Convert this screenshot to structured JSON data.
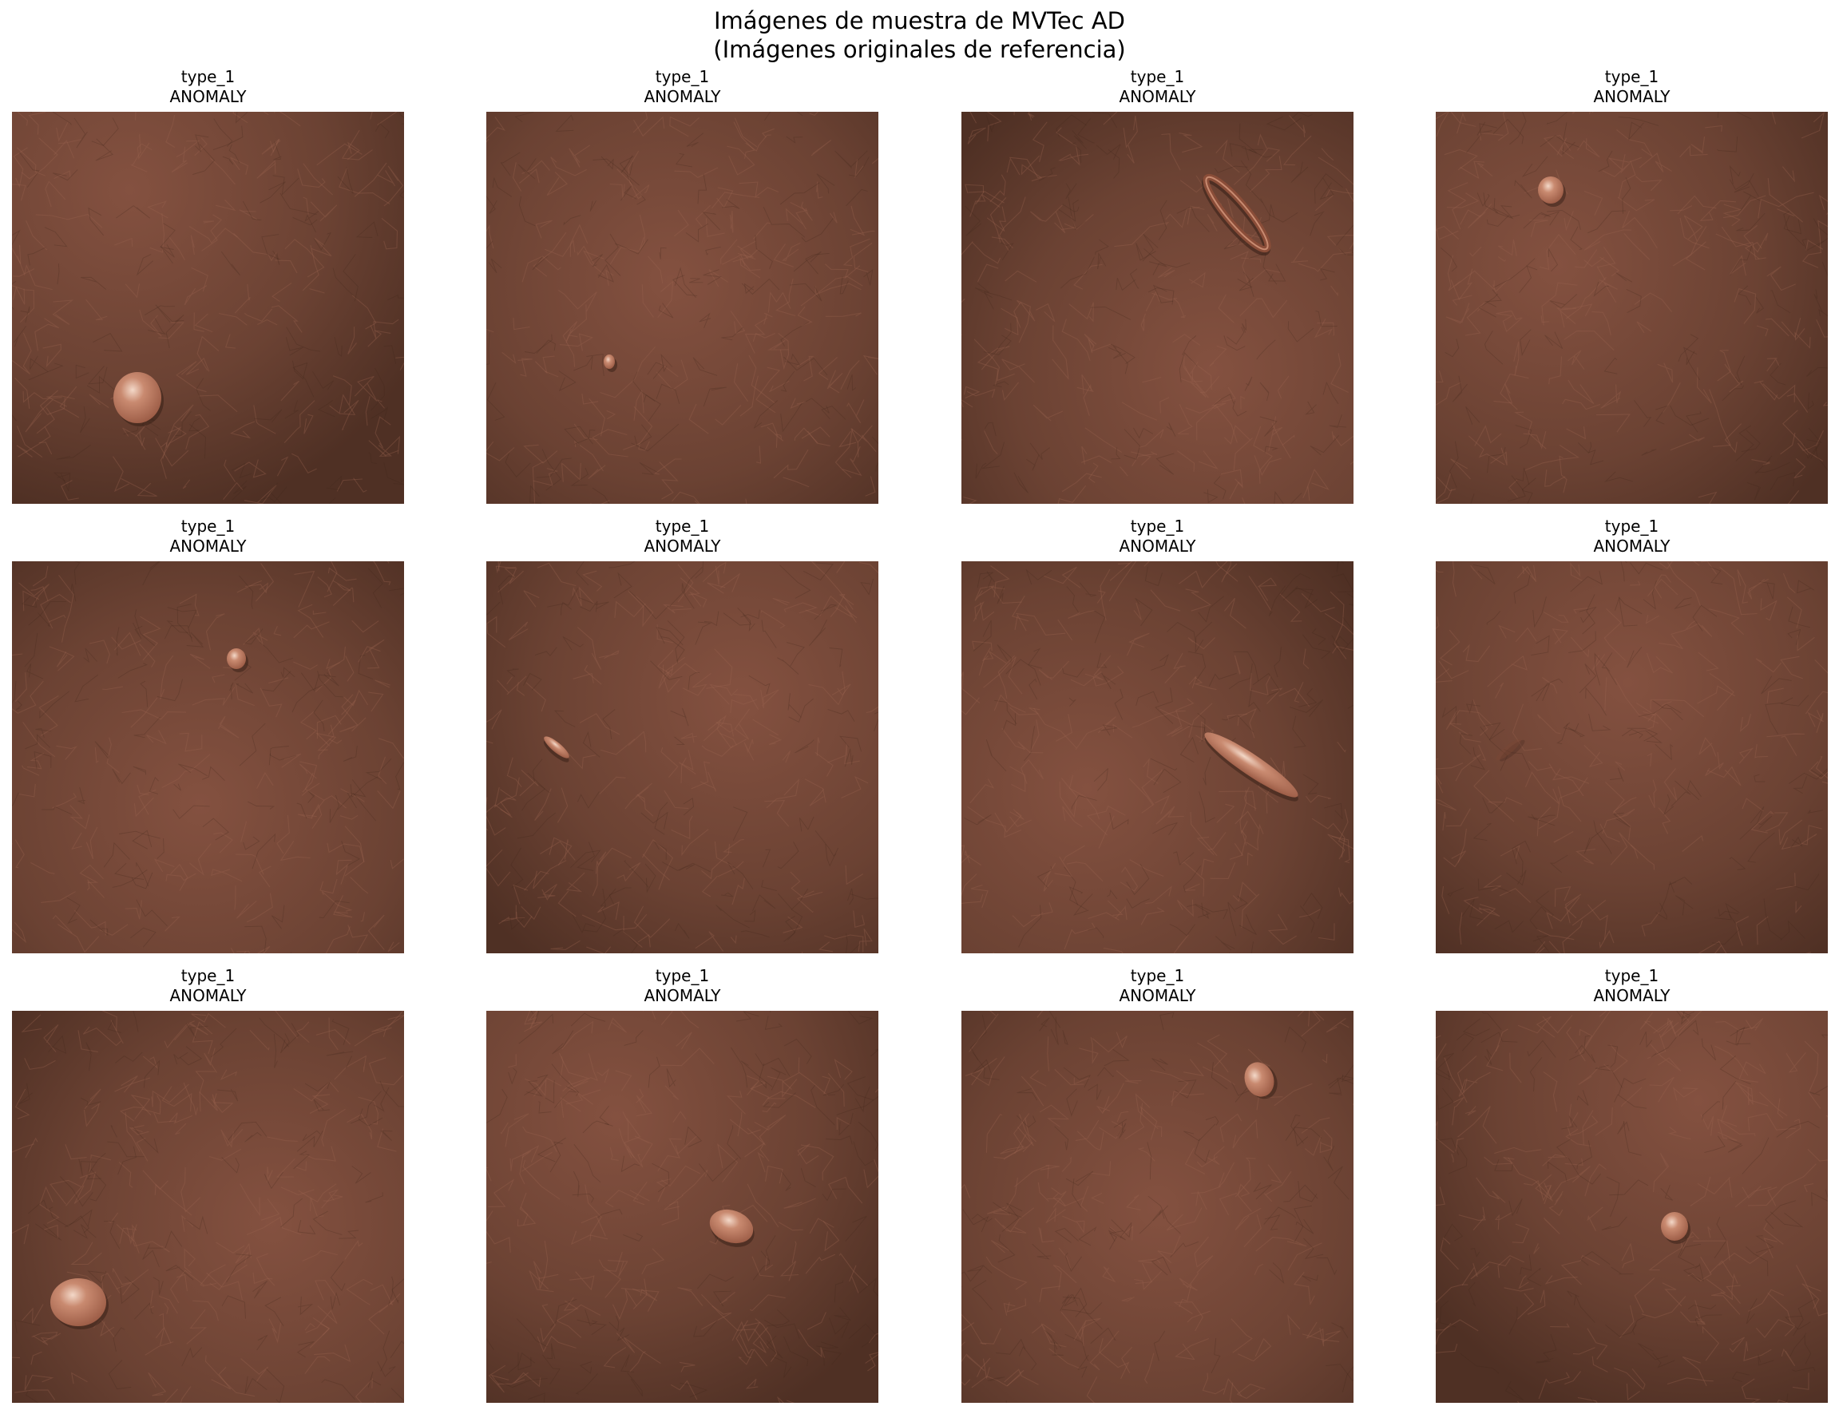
{
  "figure": {
    "title_line1": "Imágenes de muestra de MVTec AD",
    "title_line2": "(Imágenes originales de referencia)"
  },
  "colors": {
    "leather_base": "#6b4233",
    "leather_light": "#845140",
    "leather_dark": "#4f3024",
    "defect": "#9a5a44",
    "highlight": "#f3d8c8"
  },
  "panels": [
    {
      "type": "type_1",
      "status": "ANOMALY",
      "defect": "large round drop, lower left"
    },
    {
      "type": "type_1",
      "status": "ANOMALY",
      "defect": "tiny spot, left center"
    },
    {
      "type": "type_1",
      "status": "ANOMALY",
      "defect": "elongated loop, upper right"
    },
    {
      "type": "type_1",
      "status": "ANOMALY",
      "defect": "small round drop, upper left"
    },
    {
      "type": "type_1",
      "status": "ANOMALY",
      "defect": "small dot, upper center"
    },
    {
      "type": "type_1",
      "status": "ANOMALY",
      "defect": "small streak, left"
    },
    {
      "type": "type_1",
      "status": "ANOMALY",
      "defect": "long diagonal streak, center right"
    },
    {
      "type": "type_1",
      "status": "ANOMALY",
      "defect": "faint mark, left center"
    },
    {
      "type": "type_1",
      "status": "ANOMALY",
      "defect": "large round drop, bottom left"
    },
    {
      "type": "type_1",
      "status": "ANOMALY",
      "defect": "oval drop, lower center"
    },
    {
      "type": "type_1",
      "status": "ANOMALY",
      "defect": "small drop, upper right"
    },
    {
      "type": "type_1",
      "status": "ANOMALY",
      "defect": "small drop, center right"
    }
  ]
}
